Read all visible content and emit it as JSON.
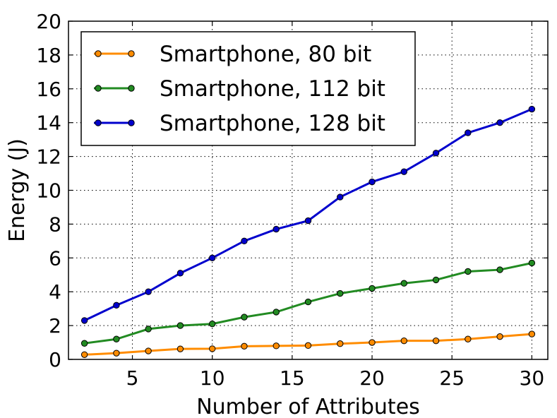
{
  "chart_data": {
    "type": "line",
    "xlabel": "Number of Attributes",
    "ylabel": "Energy (J)",
    "xlim": [
      1,
      31
    ],
    "ylim": [
      0,
      20
    ],
    "xticks": [
      5,
      10,
      15,
      20,
      25,
      30
    ],
    "yticks": [
      0,
      2,
      4,
      6,
      8,
      10,
      12,
      14,
      16,
      18,
      20
    ],
    "grid": true,
    "legend_position": "top-left",
    "x": [
      2,
      4,
      6,
      8,
      10,
      12,
      14,
      16,
      18,
      20,
      22,
      24,
      26,
      28,
      30
    ],
    "series": [
      {
        "name": "Smartphone, 80 bit",
        "color": "#ff8c00",
        "values": [
          0.28,
          0.37,
          0.5,
          0.62,
          0.63,
          0.78,
          0.8,
          0.82,
          0.93,
          1.0,
          1.1,
          1.1,
          1.2,
          1.35,
          1.5
        ]
      },
      {
        "name": "Smartphone, 112 bit",
        "color": "#228b22",
        "values": [
          0.95,
          1.2,
          1.8,
          2.0,
          2.1,
          2.5,
          2.8,
          3.4,
          3.9,
          4.2,
          4.5,
          4.7,
          5.2,
          5.3,
          5.7
        ]
      },
      {
        "name": "Smartphone, 128 bit",
        "color": "#0000cd",
        "values": [
          2.3,
          3.2,
          4.0,
          5.1,
          6.0,
          7.0,
          7.7,
          8.2,
          9.6,
          10.5,
          11.1,
          12.2,
          13.4,
          14.0,
          14.8
        ]
      }
    ]
  }
}
